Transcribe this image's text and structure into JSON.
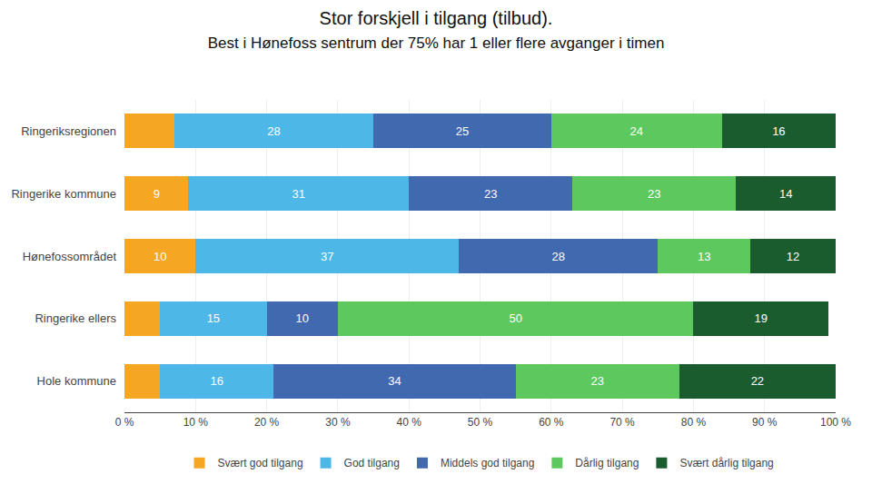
{
  "chart_data": {
    "type": "bar",
    "orientation": "horizontal",
    "stacked": true,
    "title": "Stor forskjell i tilgang (tilbud).",
    "subtitle": "Best i Hønefoss sentrum der 75% har 1 eller flere avganger i timen",
    "categories": [
      "Ringeriksregionen",
      "Ringerike kommune",
      "Hønefossområdet",
      "Ringerike ellers",
      "Hole kommune"
    ],
    "series": [
      {
        "name": "Svært god tilgang",
        "color": "#F5A623",
        "values": [
          7,
          9,
          10,
          5,
          5
        ],
        "value_labels": [
          null,
          "9",
          "10",
          null,
          null
        ]
      },
      {
        "name": "God tilgang",
        "color": "#4DB8E8",
        "values": [
          28,
          31,
          37,
          15,
          16
        ],
        "value_labels": [
          "28",
          "31",
          "37",
          "15",
          "16"
        ]
      },
      {
        "name": "Middels god tilgang",
        "color": "#4169B0",
        "values": [
          25,
          23,
          28,
          10,
          34
        ],
        "value_labels": [
          "25",
          "23",
          "28",
          "10",
          "34"
        ]
      },
      {
        "name": "Dårlig tilgang",
        "color": "#5DC85D",
        "values": [
          24,
          23,
          13,
          50,
          23
        ],
        "value_labels": [
          "24",
          "23",
          "13",
          "50",
          "23"
        ]
      },
      {
        "name": "Svært dårlig tilgang",
        "color": "#1A5C2E",
        "values": [
          16,
          14,
          12,
          19,
          22
        ],
        "value_labels": [
          "16",
          "14",
          "12",
          "19",
          "22"
        ]
      }
    ],
    "xlim": [
      0,
      100
    ],
    "xticks": [
      {
        "value": 0,
        "label": "0 %"
      },
      {
        "value": 10,
        "label": "10 %"
      },
      {
        "value": 20,
        "label": "20 %"
      },
      {
        "value": 30,
        "label": "30 %"
      },
      {
        "value": 40,
        "label": "40 %"
      },
      {
        "value": 50,
        "label": "50 %"
      },
      {
        "value": 60,
        "label": "60 %"
      },
      {
        "value": 70,
        "label": "70 %"
      },
      {
        "value": 80,
        "label": "80 %"
      },
      {
        "value": 90,
        "label": "90 %"
      },
      {
        "value": 100,
        "label": "100 %"
      }
    ],
    "grid": true,
    "data_labels": true,
    "legend": "bottom"
  }
}
